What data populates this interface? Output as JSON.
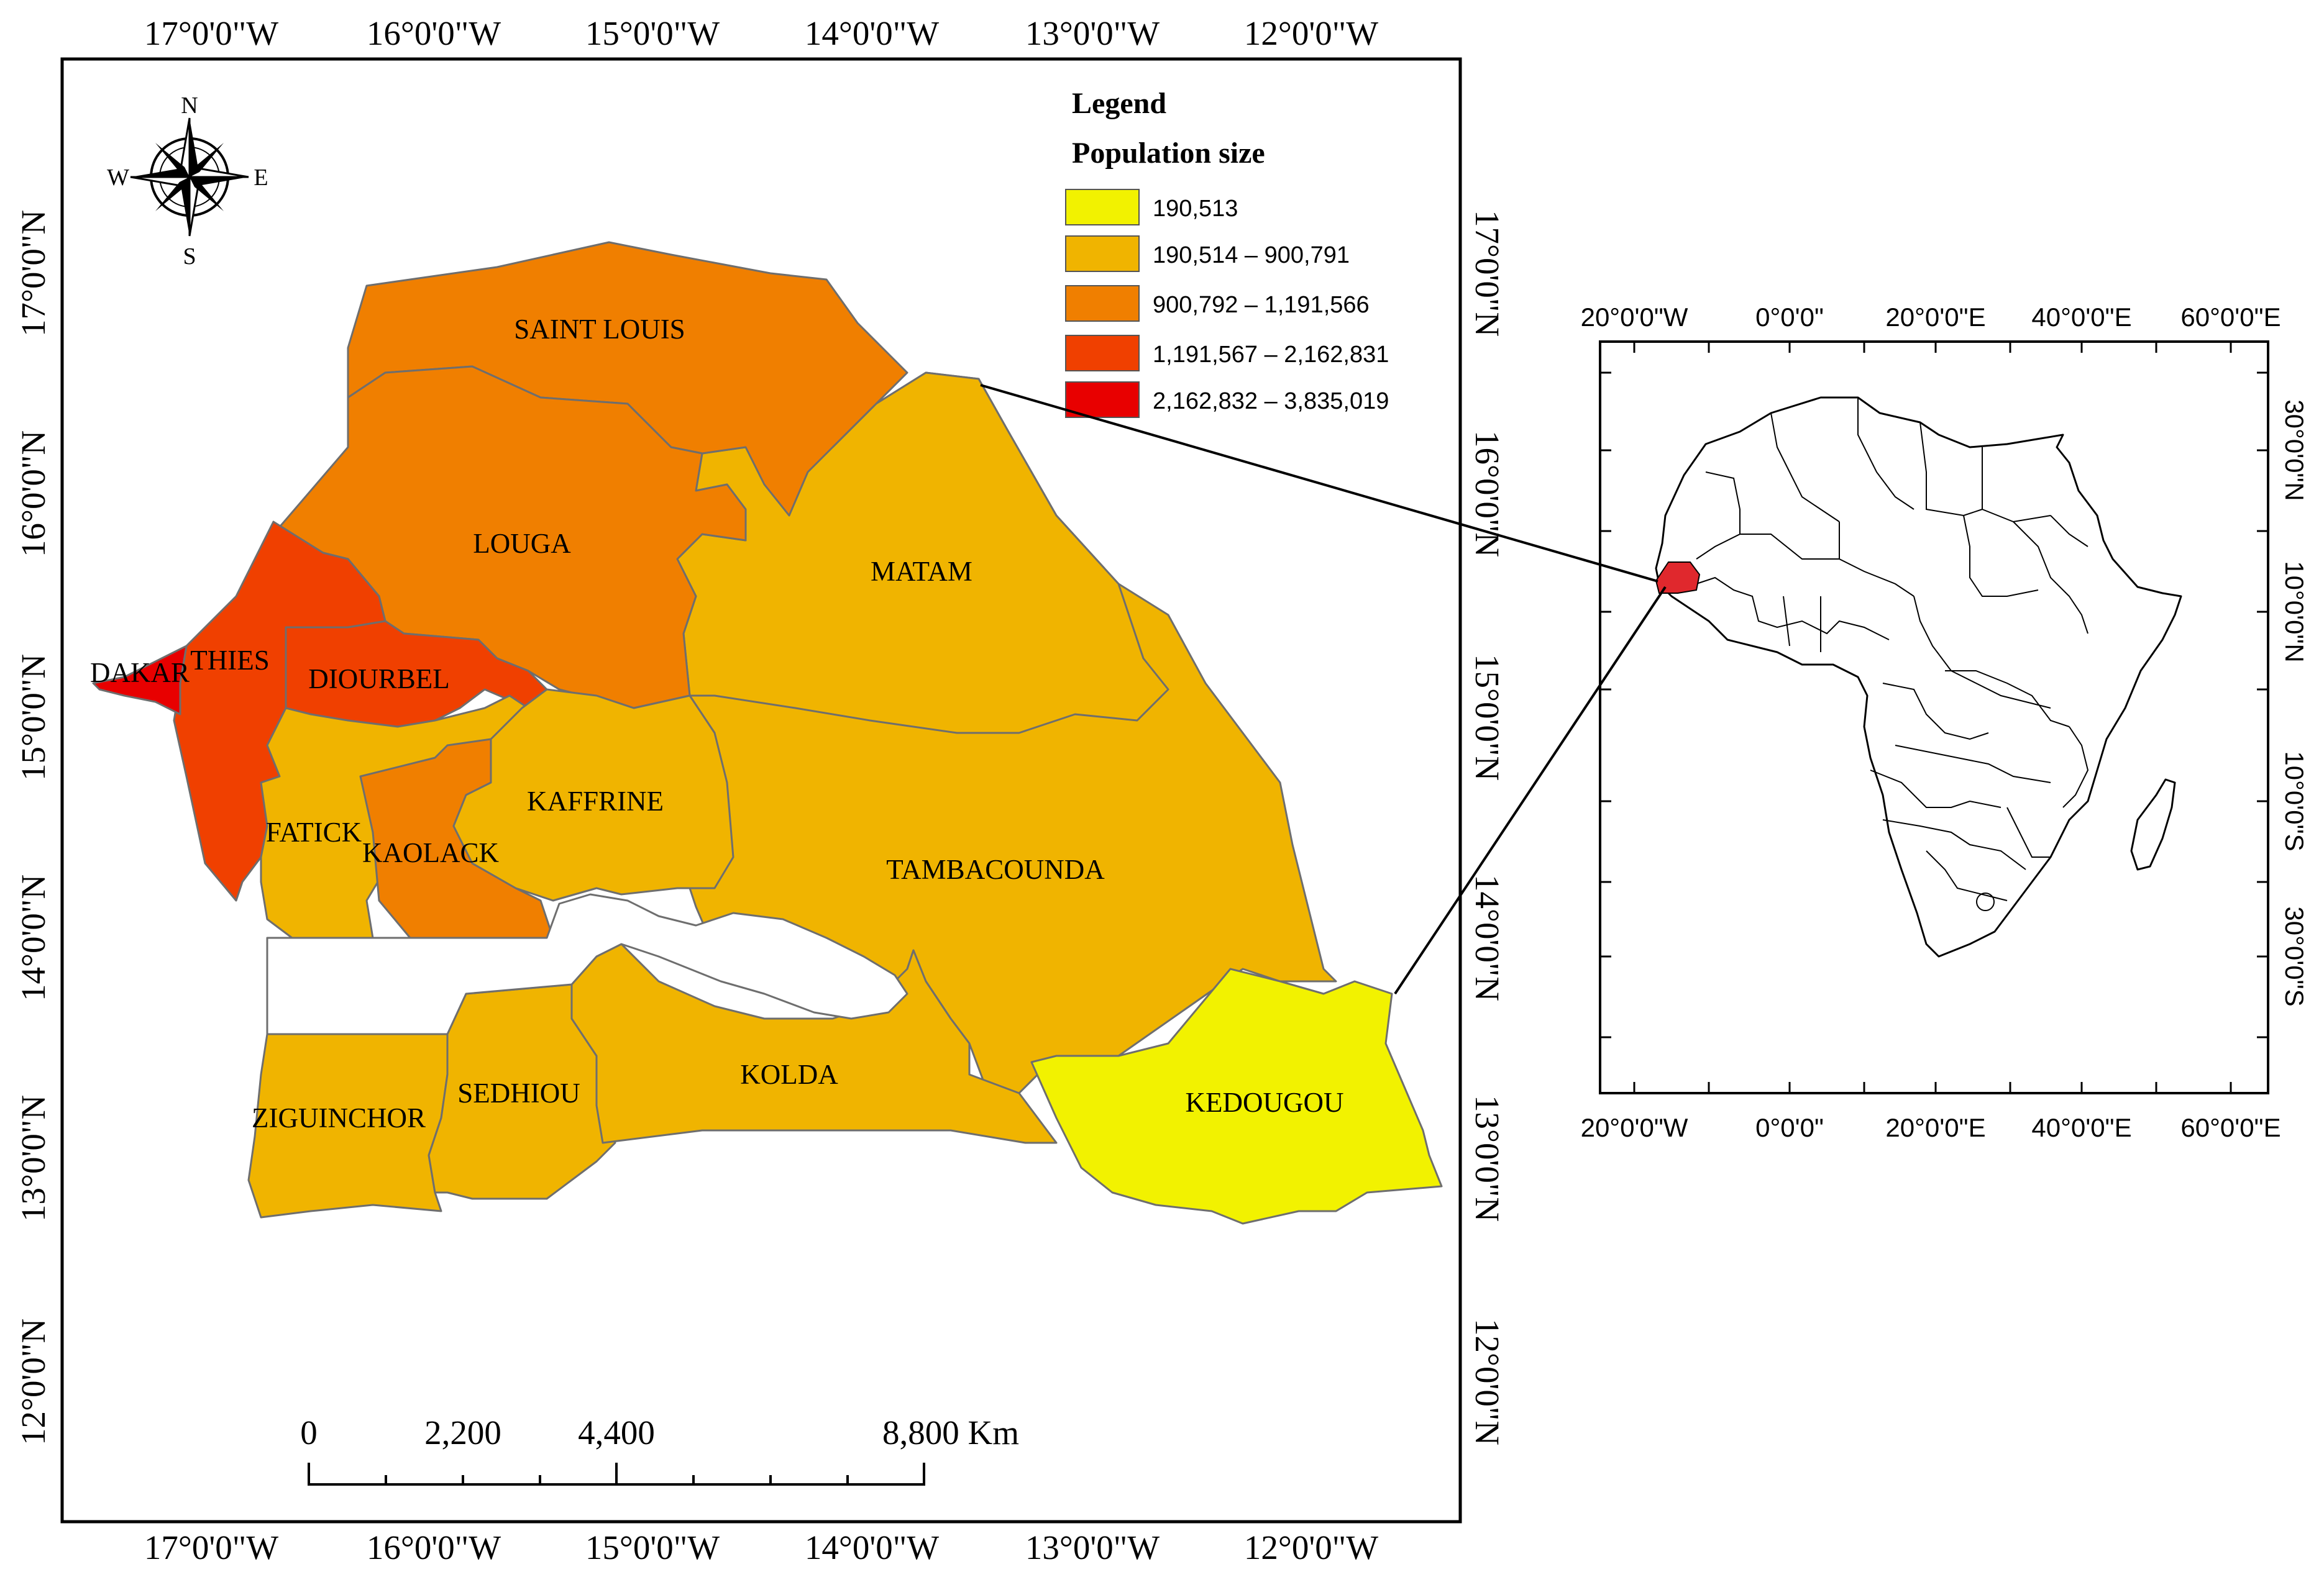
{
  "main_map": {
    "top_lon_labels": [
      "17°0'0\"W",
      "16°0'0\"W",
      "15°0'0\"W",
      "14°0'0\"W",
      "13°0'0\"W",
      "12°0'0\"W"
    ],
    "bottom_lon_labels": [
      "17°0'0\"W",
      "16°0'0\"W",
      "15°0'0\"W",
      "14°0'0\"W",
      "13°0'0\"W",
      "12°0'0\"W"
    ],
    "left_lat_labels": [
      "17°0'0\"N",
      "16°0'0\"N",
      "15°0'0\"N",
      "14°0'0\"N",
      "13°0'0\"N",
      "12°0'0\"N"
    ],
    "right_lat_labels": [
      "17°0'0\"N",
      "16°0'0\"N",
      "15°0'0\"N",
      "14°0'0\"N",
      "13°0'0\"N",
      "12°0'0\"N"
    ],
    "compass": {
      "n": "N",
      "s": "S",
      "e": "E",
      "w": "W"
    },
    "regions": [
      {
        "name": "SAINT LOUIS",
        "class": 3
      },
      {
        "name": "LOUGA",
        "class": 3
      },
      {
        "name": "MATAM",
        "class": 2
      },
      {
        "name": "DAKAR",
        "class": 5
      },
      {
        "name": "THIES",
        "class": 4
      },
      {
        "name": "DIOURBEL",
        "class": 4
      },
      {
        "name": "FATICK",
        "class": 2
      },
      {
        "name": "KAOLACK",
        "class": 3
      },
      {
        "name": "KAFFRINE",
        "class": 2
      },
      {
        "name": "TAMBACOUNDA",
        "class": 2
      },
      {
        "name": "ZIGUINCHOR",
        "class": 2
      },
      {
        "name": "SEDHIOU",
        "class": 2
      },
      {
        "name": "KOLDA",
        "class": 2
      },
      {
        "name": "KEDOUGOU",
        "class": 1
      }
    ],
    "scale_bar": {
      "labels": [
        "0",
        "2,200",
        "4,400",
        "8,800 Km"
      ]
    }
  },
  "legend": {
    "title": "Legend",
    "subtitle": "Population size",
    "items": [
      {
        "label": "190,513",
        "color": "#f2f200"
      },
      {
        "label": "190,514  –  900,791",
        "color": "#f0b400"
      },
      {
        "label": "900,792  – 1,191,566",
        "color": "#f07f00"
      },
      {
        "label": "1,191,567  –  2,162,831",
        "color": "#f04000"
      },
      {
        "label": "2,162,832  –  3,835,019",
        "color": "#e80000"
      }
    ]
  },
  "inset_map": {
    "top_labels": [
      "20°0'0\"W",
      "0°0'0\"",
      "20°0'0\"E",
      "40°0'0\"E",
      "60°0'0\"E"
    ],
    "bottom_labels": [
      "20°0'0\"W",
      "0°0'0\"",
      "20°0'0\"E",
      "40°0'0\"E",
      "60°0'0\"E"
    ],
    "right_labels": [
      "30°0'0\"N",
      "10°0'0\"N",
      "10°0'0\"S",
      "30°0'0\"S"
    ],
    "highlight_color": "#e0282d"
  }
}
